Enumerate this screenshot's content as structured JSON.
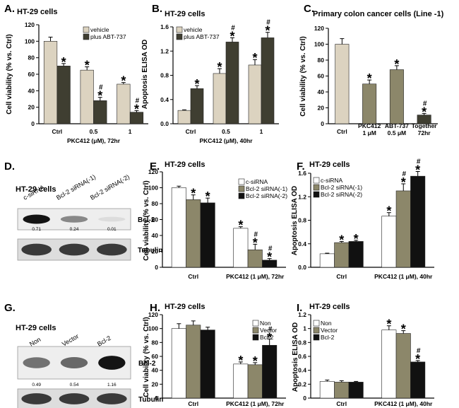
{
  "colors": {
    "light": "#dcd3c0",
    "medium": "#8c876a",
    "dark": "#3f3e31",
    "black": "#111111",
    "white": "#ffffff",
    "outline": "#222222"
  },
  "chart_data": [
    {
      "id": "A",
      "type": "bar",
      "panel": "A.",
      "title": "HT-29 cells",
      "categories": [
        "Ctrl",
        "0.5",
        "1"
      ],
      "xlabel": "PKC412 (μM), 72hr",
      "ylabel": "Cell viability (% vs. Ctrl)",
      "ylim": [
        0,
        120
      ],
      "yticks": [
        0,
        20,
        40,
        60,
        80,
        100,
        120
      ],
      "series": [
        {
          "name": "vehicle",
          "color": "light",
          "values": [
            100,
            65,
            48
          ],
          "errors": [
            5,
            4,
            2
          ],
          "marks": [
            "",
            "*",
            "*"
          ]
        },
        {
          "name": "plus ABT-737",
          "color": "dark",
          "values": [
            70,
            28,
            14
          ],
          "errors": [
            3,
            4,
            2
          ],
          "marks": [
            "*",
            "#*",
            "#*"
          ]
        }
      ]
    },
    {
      "id": "B",
      "type": "bar",
      "panel": "B.",
      "title": "HT-29 cells",
      "categories": [
        "Ctrl",
        "0.5",
        "1"
      ],
      "xlabel": "PKC412 (μM), 40hr",
      "ylabel": "Apoptosis ELISA OD",
      "ylim": [
        0,
        1.6
      ],
      "yticks": [
        "0.0",
        "0.4",
        "0.8",
        "1.2",
        "1.6"
      ],
      "series": [
        {
          "name": "vehicle",
          "color": "light",
          "values": [
            0.22,
            0.83,
            0.97
          ],
          "errors": [
            0.01,
            0.08,
            0.09
          ],
          "marks": [
            "",
            "*",
            "*"
          ]
        },
        {
          "name": "plus ABT-737",
          "color": "dark",
          "values": [
            0.58,
            1.35,
            1.42
          ],
          "errors": [
            0.05,
            0.07,
            0.09
          ],
          "marks": [
            "*",
            "#*",
            "#*"
          ]
        }
      ]
    },
    {
      "id": "C",
      "type": "bar",
      "panel": "C.",
      "title": "Primary colon cancer cells (Line -1)",
      "categories": [
        "Ctrl",
        "PKC412\n1 μM",
        "ABT-737\n0.5 μM",
        "Together\n72hr"
      ],
      "xlabel": "",
      "ylabel": "Cell viability (% vs. Ctrl)",
      "ylim": [
        0,
        120
      ],
      "yticks": [
        0,
        20,
        40,
        60,
        80,
        100,
        120
      ],
      "series": [
        {
          "name": "viability",
          "colors": [
            "light",
            "medium",
            "medium",
            "dark"
          ],
          "values": [
            100,
            50,
            68,
            11
          ],
          "errors": [
            7,
            5,
            5,
            2
          ],
          "marks": [
            "",
            "*",
            "*",
            "#*"
          ]
        }
      ]
    },
    {
      "id": "E",
      "type": "bar",
      "panel": "E.",
      "title": "HT-29 cells",
      "categories": [
        "Ctrl",
        "PKC412 (1 μM), 72hr"
      ],
      "xlabel": "",
      "ylabel": "Cell viability (% vs. Ctrl)",
      "ylim": [
        0,
        120
      ],
      "yticks": [
        0,
        20,
        40,
        60,
        80,
        100,
        120
      ],
      "series": [
        {
          "name": "c-siRNA",
          "color": "white",
          "values": [
            100,
            49
          ],
          "errors": [
            2,
            2
          ],
          "marks": [
            "",
            "*"
          ]
        },
        {
          "name": "Bcl-2 siRNA(-1)",
          "color": "medium",
          "values": [
            85,
            22
          ],
          "errors": [
            6,
            7
          ],
          "marks": [
            "*",
            "#*"
          ]
        },
        {
          "name": "Bcl-2 siRNA(-2)",
          "color": "black",
          "values": [
            81,
            9
          ],
          "errors": [
            6,
            2
          ],
          "marks": [
            "*",
            "#*"
          ]
        }
      ]
    },
    {
      "id": "F",
      "type": "bar",
      "panel": "F.",
      "title": "HT-29 cells",
      "categories": [
        "Ctrl",
        "PKC412 (1 μM), 40hr"
      ],
      "xlabel": "",
      "ylabel": "Apoptosis ELISA OD",
      "ylim": [
        0,
        1.6
      ],
      "yticks": [
        "0.0",
        "0.4",
        "0.8",
        "1.2",
        "1.6"
      ],
      "series": [
        {
          "name": "c-siRNA",
          "color": "white",
          "values": [
            0.23,
            0.87
          ],
          "errors": [
            0.01,
            0.06
          ],
          "marks": [
            "",
            "*"
          ]
        },
        {
          "name": "Bcl-2 siRNA(-1)",
          "color": "medium",
          "values": [
            0.42,
            1.3
          ],
          "errors": [
            0.02,
            0.12
          ],
          "marks": [
            "*",
            "#*"
          ]
        },
        {
          "name": "Bcl-2 siRNA(-2)",
          "color": "black",
          "values": [
            0.44,
            1.55
          ],
          "errors": [
            0.02,
            0.08
          ],
          "marks": [
            "*",
            "#*"
          ]
        }
      ]
    },
    {
      "id": "H",
      "type": "bar",
      "panel": "H.",
      "title": "HT-29 cells",
      "categories": [
        "Ctrl",
        "PKC412 (1 μM), 72hr"
      ],
      "xlabel": "",
      "ylabel": "Cell viability (% vs. Ctrl)",
      "ylim": [
        0,
        120
      ],
      "yticks": [
        0,
        20,
        40,
        60,
        80,
        100,
        120
      ],
      "series": [
        {
          "name": "Non",
          "color": "white",
          "values": [
            100,
            49
          ],
          "errors": [
            7,
            3
          ],
          "marks": [
            "",
            "*"
          ]
        },
        {
          "name": "Vector",
          "color": "medium",
          "values": [
            105,
            48
          ],
          "errors": [
            6,
            3
          ],
          "marks": [
            "",
            "*"
          ]
        },
        {
          "name": "Bcl-2",
          "color": "black",
          "values": [
            98,
            76
          ],
          "errors": [
            4,
            9
          ],
          "marks": [
            "",
            "#*"
          ]
        }
      ]
    },
    {
      "id": "I",
      "type": "bar",
      "panel": "I.",
      "title": "HT-29 cells",
      "categories": [
        "Ctrl",
        "PKC412 (1 μM), 40hr"
      ],
      "xlabel": "",
      "ylabel": "Apoptosis ELISA OD",
      "ylim": [
        0,
        1.2
      ],
      "yticks": [
        0,
        0.2,
        0.4,
        0.6,
        0.8,
        1,
        1.2
      ],
      "series": [
        {
          "name": "Non",
          "color": "white",
          "values": [
            0.24,
            0.98
          ],
          "errors": [
            0.02,
            0.06
          ],
          "marks": [
            "",
            "*"
          ]
        },
        {
          "name": "Vector",
          "color": "medium",
          "values": [
            0.23,
            0.93
          ],
          "errors": [
            0.02,
            0.04
          ],
          "marks": [
            "",
            "*"
          ]
        },
        {
          "name": "Bcl-2",
          "color": "black",
          "values": [
            0.23,
            0.52
          ],
          "errors": [
            0.01,
            0.02
          ],
          "marks": [
            "",
            "#*"
          ]
        }
      ]
    }
  ],
  "blots": [
    {
      "id": "D",
      "panel": "D.",
      "title": "HT-29 cells",
      "lanes": [
        "c-siRNA",
        "Bcl-2 siRNA(-1)",
        "Bcl-2 siRNA(-2)"
      ],
      "protein": "Bcl-2",
      "values": [
        "0.71",
        "0.24",
        "0.01"
      ],
      "intensities": [
        1.0,
        0.45,
        0.05
      ],
      "loading": "Tubulin"
    },
    {
      "id": "G",
      "panel": "G.",
      "title": "HT-29 cells",
      "lanes": [
        "Non",
        "Vector",
        "Bcl-2"
      ],
      "protein": "Bcl-2",
      "values": [
        "0.49",
        "0.54",
        "1.16"
      ],
      "intensities": [
        0.55,
        0.6,
        1.0
      ],
      "loading": "Tubulin"
    }
  ]
}
